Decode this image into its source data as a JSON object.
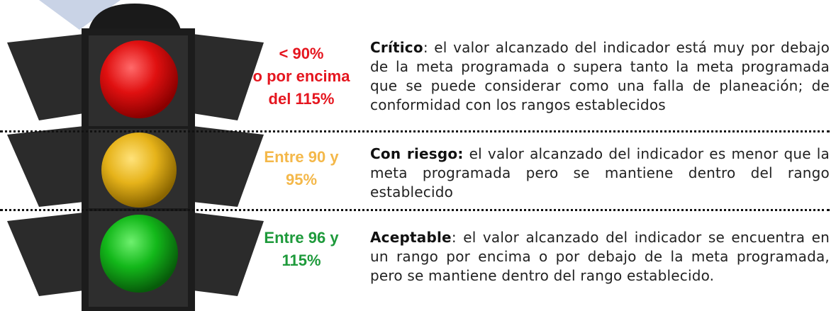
{
  "rows": [
    {
      "range_lines": [
        "< 90%",
        "o por encima",
        "del 115%"
      ],
      "color": "#e5161f",
      "title": "Crítico",
      "text": ": el valor alcanzado del indicador está muy por debajo de la meta programada o supera tanto la meta programada que se puede considerar como una falla de planeación; de conformidad con los rangos establecidos"
    },
    {
      "range_lines": [
        "Entre 90 y",
        "95%"
      ],
      "color": "#f4b84a",
      "title": "Con riesgo:",
      "text": " el valor alcanzado del indicador es menor que la meta programada pero se mantiene dentro del rango establecido"
    },
    {
      "range_lines": [
        "Entre 96 y",
        "115%"
      ],
      "color": "#1e9a3b",
      "title": "Aceptable",
      "text": ": el valor alcanzado del indicador se encuentra en un rango por encima o por debajo de la meta programada, pero se mantiene dentro del rango establecido."
    }
  ]
}
